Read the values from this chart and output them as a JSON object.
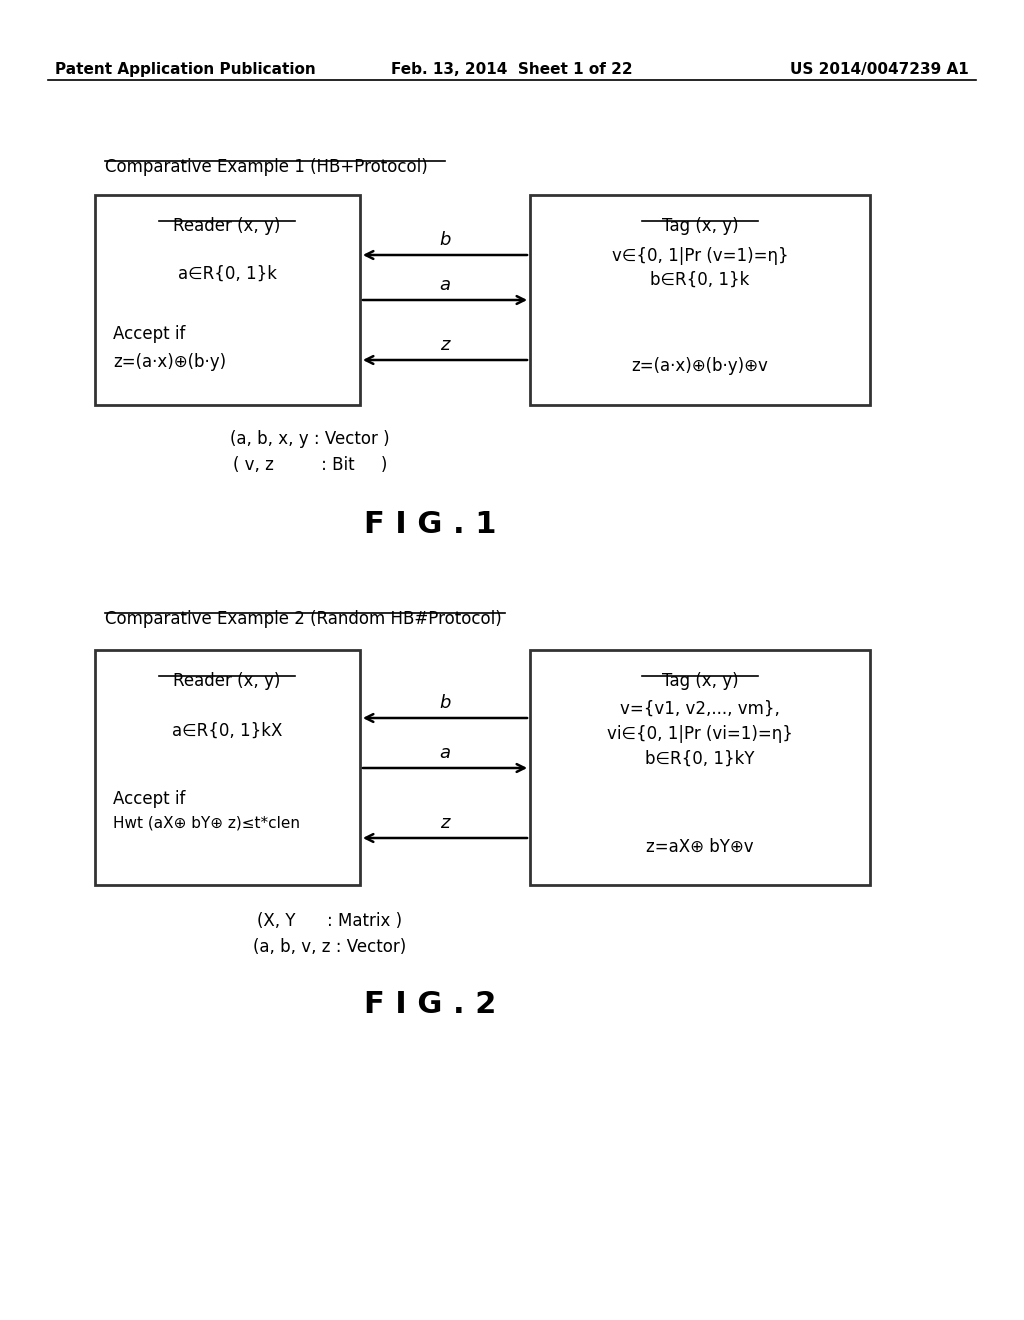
{
  "bg_color": "#ffffff",
  "header_left": "Patent Application Publication",
  "header_mid": "Feb. 13, 2014  Sheet 1 of 22",
  "header_right": "US 2014/0047239 A1",
  "fig1_title": "Comparative Example 1 (HB+Protocol)",
  "fig1_reader_title": "Reader (x, y)",
  "fig1_reader_line1": "a∈R{0, 1}k",
  "fig1_reader_line2": "Accept if",
  "fig1_reader_line3": "z=(a·x)⊕(b·y)",
  "fig1_tag_title": "Tag (x, y)",
  "fig1_tag_line1": "v∈{0, 1|Pr (v=1)=η}",
  "fig1_tag_line2": "b∈R{0, 1}k",
  "fig1_tag_line3": "z=(a·x)⊕(b·y)⊕v",
  "fig1_arrow1": "b",
  "fig1_arrow2": "a",
  "fig1_arrow3": "z",
  "fig1_note1": "(a, b, x, y : Vector )",
  "fig1_note2": "( v, z         : Bit     )",
  "fig1_caption": "F I G . 1",
  "fig2_title": "Comparative Example 2 (Random HB#Protocol)",
  "fig2_reader_title": "Reader (x, y)",
  "fig2_reader_line1": "a∈R{0, 1}kX",
  "fig2_reader_line2": "Accept if",
  "fig2_reader_line3": "Hwt (aX⊕ bY⊕ z)≤t*clen",
  "fig2_tag_title": "Tag (x, y)",
  "fig2_tag_line1": "v={v1, v2,..., vm},",
  "fig2_tag_line2": "vi∈{0, 1|Pr (vi=1)=η}",
  "fig2_tag_line3": "b∈R{0, 1}kY",
  "fig2_tag_line4": "z=aX⊕ bY⊕v",
  "fig2_arrow1": "b",
  "fig2_arrow2": "a",
  "fig2_arrow3": "z",
  "fig2_note1": "(X, Y      : Matrix )",
  "fig2_note2": "(a, b, v, z : Vector)",
  "fig2_caption": "F I G . 2"
}
